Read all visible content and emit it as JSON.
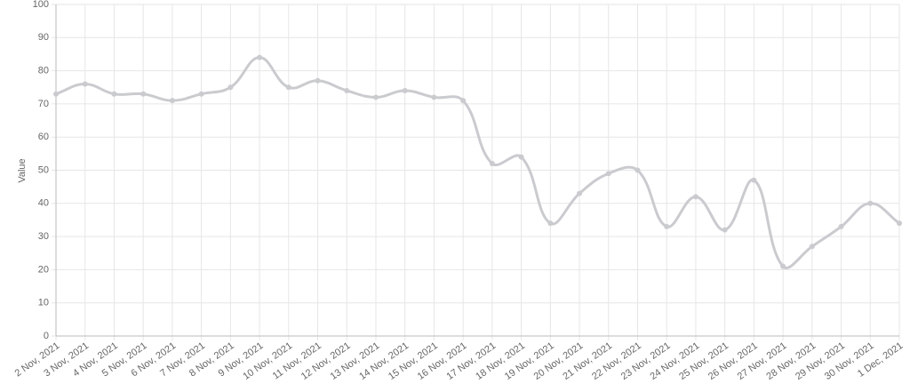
{
  "chart_data": {
    "type": "line",
    "y_label": "Value",
    "categories": [
      "2 Nov, 2021",
      "3 Nov, 2021",
      "4 Nov, 2021",
      "5 Nov, 2021",
      "6 Nov, 2021",
      "7 Nov, 2021",
      "8 Nov, 2021",
      "9 Nov, 2021",
      "10 Nov, 2021",
      "11 Nov, 2021",
      "12 Nov, 2021",
      "13 Nov, 2021",
      "14 Nov, 2021",
      "15 Nov, 2021",
      "16 Nov, 2021",
      "17 Nov, 2021",
      "18 Nov, 2021",
      "19 Nov, 2021",
      "20 Nov, 2021",
      "21 Nov, 2021",
      "22 Nov, 2021",
      "23 Nov, 2021",
      "24 Nov, 2021",
      "25 Nov, 2021",
      "26 Nov, 2021",
      "27 Nov, 2021",
      "28 Nov, 2021",
      "29 Nov, 2021",
      "30 Nov, 2021",
      "1 Dec, 2021"
    ],
    "values": [
      73,
      76,
      73,
      73,
      71,
      73,
      75,
      84,
      75,
      77,
      74,
      72,
      74,
      72,
      71,
      52,
      54,
      34,
      43,
      49,
      50,
      33,
      42,
      32,
      47,
      21,
      27,
      33,
      40,
      34
    ],
    "color": "#cacbcf",
    "ylim": [
      0,
      100
    ],
    "yticks": [
      0,
      10,
      20,
      30,
      40,
      50,
      60,
      70,
      80,
      90,
      100
    ],
    "grid": true
  }
}
